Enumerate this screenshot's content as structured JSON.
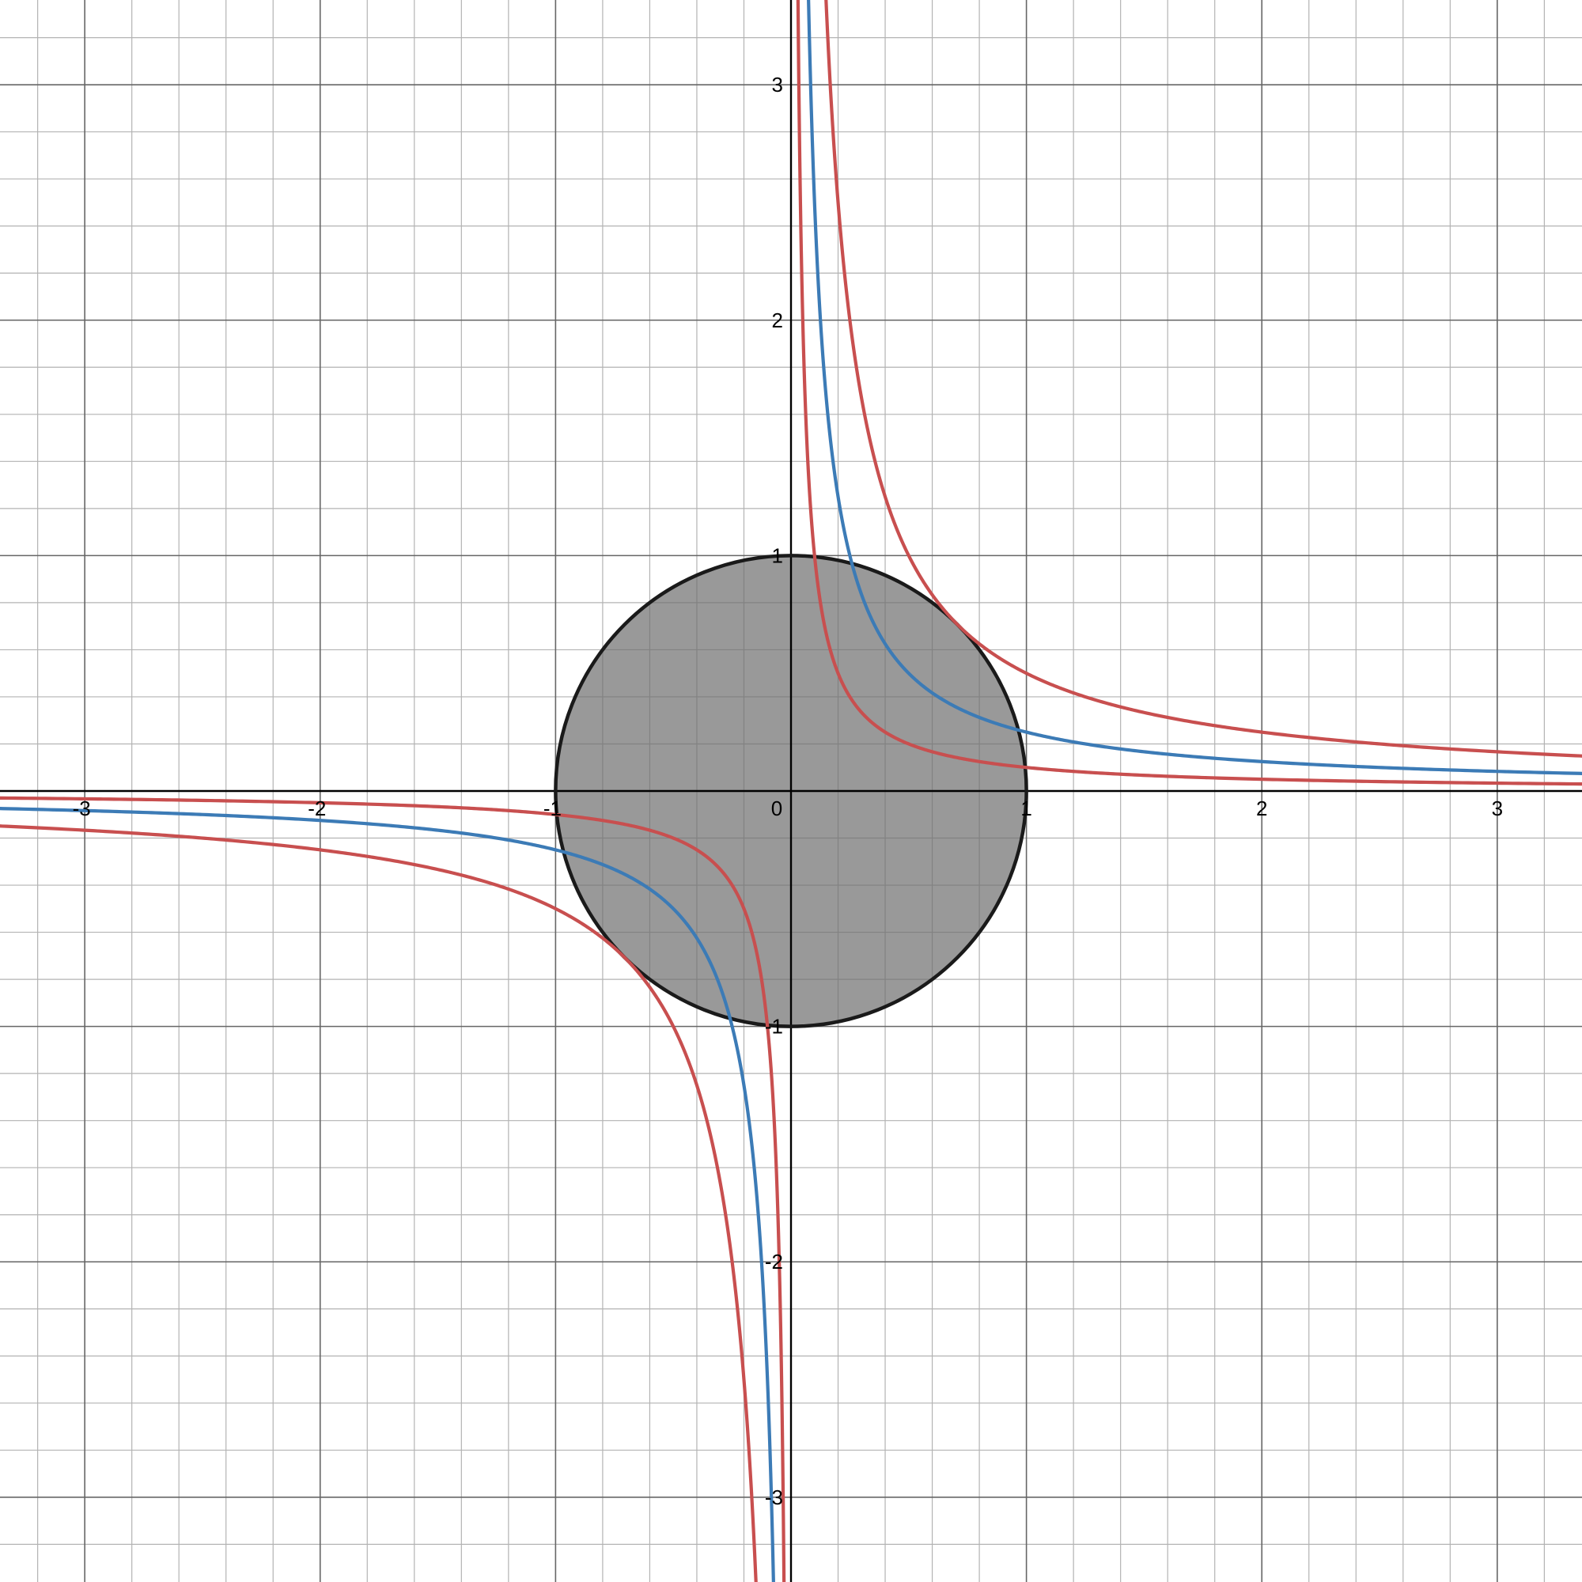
{
  "chart_data": {
    "type": "line",
    "xlim": [
      -3.36,
      3.36
    ],
    "ylim": [
      -3.36,
      3.36
    ],
    "grid": true,
    "grid_major_step": 1,
    "grid_minor_step": 0.2,
    "x_tick_labels": [
      "-3",
      "-2",
      "-1",
      "0",
      "1",
      "2",
      "3"
    ],
    "x_tick_values": [
      -3,
      -2,
      -1,
      0,
      1,
      2,
      3
    ],
    "y_tick_labels": [
      "3",
      "2",
      "1",
      "-1",
      "-2",
      "-3"
    ],
    "y_tick_values": [
      3,
      2,
      1,
      -1,
      -2,
      -3
    ],
    "region": {
      "shape": "disk",
      "center": [
        0,
        0
      ],
      "radius": 1,
      "fill_color": "#999999",
      "stroke_color": "#1a1a1a"
    },
    "series": [
      {
        "equation_k": 0.25,
        "color": "#3c7bb6"
      },
      {
        "equation_k": 0.1,
        "color": "#c84f4f"
      },
      {
        "equation_k": 0.5,
        "color": "#c84f4f"
      }
    ],
    "curve_form": "y = k / x"
  },
  "colors": {
    "axis": "#000000",
    "grid_major": "#666666",
    "grid_minor": "#b3b3b3"
  }
}
